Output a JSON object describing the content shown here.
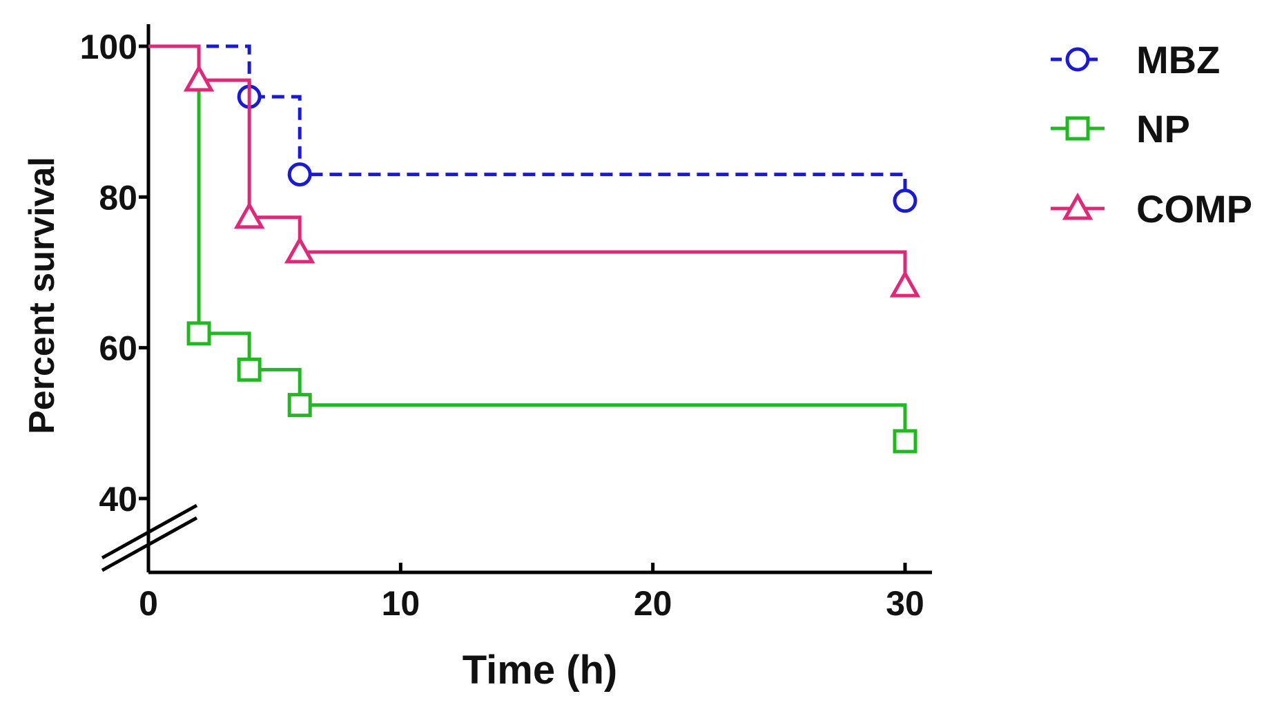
{
  "chart_data": {
    "type": "line",
    "subtype": "kaplan-meier step",
    "title": "",
    "xlabel": "Time (h)",
    "ylabel": "Percent survival",
    "xlim": [
      0,
      31
    ],
    "ylim": [
      40,
      100
    ],
    "y_axis_break": true,
    "x_ticks": [
      0,
      10,
      20,
      30
    ],
    "x_tick_labels": [
      "0",
      "10",
      "20",
      "30"
    ],
    "y_ticks": [
      40,
      60,
      80,
      100
    ],
    "y_tick_labels": [
      "40",
      "60",
      "80",
      "100"
    ],
    "grid": false,
    "legend_position": "top-right",
    "series": [
      {
        "name": "MBZ",
        "color": "#1a1ad6",
        "dash": true,
        "marker": "circle",
        "x": [
          0,
          4,
          6,
          30
        ],
        "y": [
          100,
          93.3,
          83.0,
          79.5
        ]
      },
      {
        "name": "NP",
        "color": "#22b822",
        "dash": false,
        "marker": "square",
        "x": [
          0,
          2,
          4,
          6,
          30
        ],
        "y": [
          100,
          61.9,
          57.1,
          52.4,
          47.6
        ]
      },
      {
        "name": "COMP",
        "color": "#e02878",
        "dash": false,
        "marker": "triangle",
        "x": [
          0,
          2,
          4,
          6,
          30
        ],
        "y": [
          100,
          95.5,
          77.3,
          72.7,
          68.2
        ]
      }
    ]
  }
}
